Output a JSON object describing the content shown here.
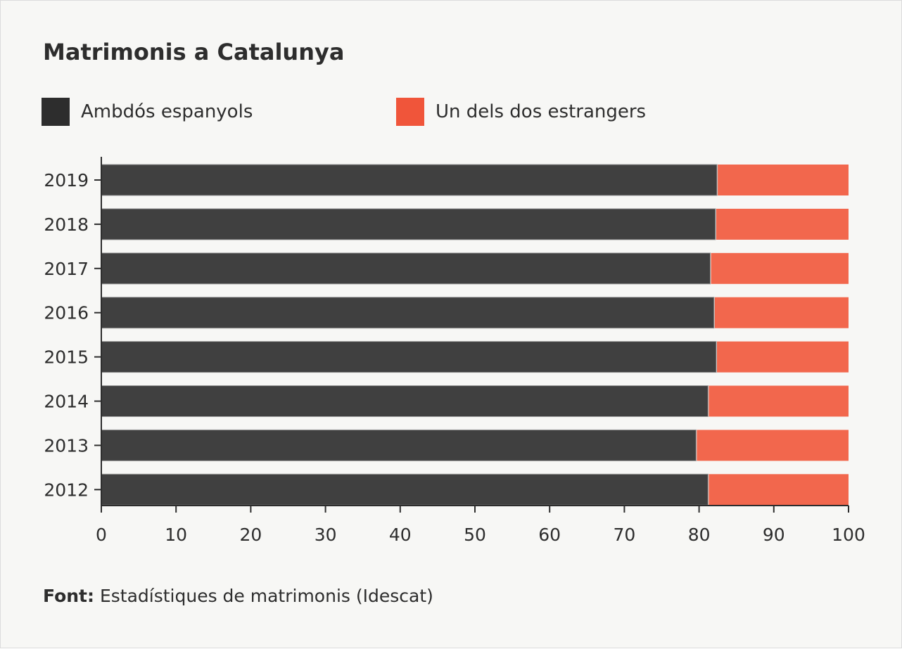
{
  "chart_data": {
    "type": "bar",
    "orientation": "horizontal",
    "stacked": true,
    "title": "Matrimonis a Catalunya",
    "categories": [
      "2019",
      "2018",
      "2017",
      "2016",
      "2015",
      "2014",
      "2013",
      "2012"
    ],
    "series": [
      {
        "name": "Ambdós espanyols",
        "color": "#404040",
        "values": [
          82.4,
          82.2,
          81.5,
          82.0,
          82.3,
          81.2,
          79.6,
          81.2
        ]
      },
      {
        "name": "Un dels dos estrangers",
        "color": "#f2674d",
        "values": [
          17.6,
          17.8,
          18.5,
          18.0,
          17.7,
          18.8,
          20.4,
          18.8
        ]
      }
    ],
    "xlim": [
      0,
      100
    ],
    "xticks": [
      "0",
      "10",
      "20",
      "30",
      "40",
      "50",
      "60",
      "70",
      "80",
      "90",
      "100"
    ],
    "grid": false,
    "legend": "top-left"
  },
  "legend_colors": [
    "#2d2d2d",
    "#f0553a"
  ],
  "source": {
    "label": "Font:",
    "text": "Estadístiques de matrimonis (Idescat)"
  }
}
